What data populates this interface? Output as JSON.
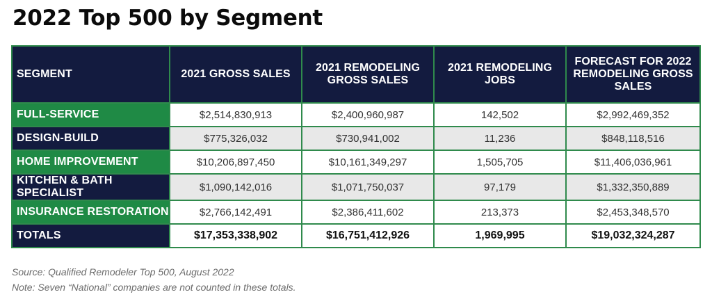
{
  "title": "2022 Top 500 by Segment",
  "columns": [
    "Segment",
    "2021 Gross Sales",
    "2021 Remodeling Gross Sales",
    "2021 Remodeling Jobs",
    "Forecast for 2022 Remodeling Gross Sales"
  ],
  "rows": [
    {
      "segment": "Full-Service",
      "gross_sales": "$2,514,830,913",
      "remodeling_gross_sales": "$2,400,960,987",
      "remodeling_jobs": "142,502",
      "forecast_2022": "$2,992,469,352"
    },
    {
      "segment": "Design-Build",
      "gross_sales": "$775,326,032",
      "remodeling_gross_sales": "$730,941,002",
      "remodeling_jobs": "11,236",
      "forecast_2022": "$848,118,516"
    },
    {
      "segment": "Home Improvement",
      "gross_sales": "$10,206,897,450",
      "remodeling_gross_sales": "$10,161,349,297",
      "remodeling_jobs": "1,505,705",
      "forecast_2022": "$11,406,036,961"
    },
    {
      "segment": "Kitchen & Bath Specialist",
      "gross_sales": "$1,090,142,016",
      "remodeling_gross_sales": "$1,071,750,037",
      "remodeling_jobs": "97,179",
      "forecast_2022": "$1,332,350,889"
    },
    {
      "segment": "Insurance Restoration",
      "gross_sales": "$2,766,142,491",
      "remodeling_gross_sales": "$2,386,411,602",
      "remodeling_jobs": "213,373",
      "forecast_2022": "$2,453,348,570"
    }
  ],
  "totals": {
    "segment": "Totals",
    "gross_sales": "$17,353,338,902",
    "remodeling_gross_sales": "$16,751,412,926",
    "remodeling_jobs": "1,969,995",
    "forecast_2022": "$19,032,324,287"
  },
  "source": "Source: Qualified Remodeler Top 500, August 2022",
  "note": "Note: Seven “National” companies are not counted in these totals.",
  "colors": {
    "navy": "#131b3f",
    "green": "#1f8a45",
    "row_alt": "#e8e8e8"
  }
}
